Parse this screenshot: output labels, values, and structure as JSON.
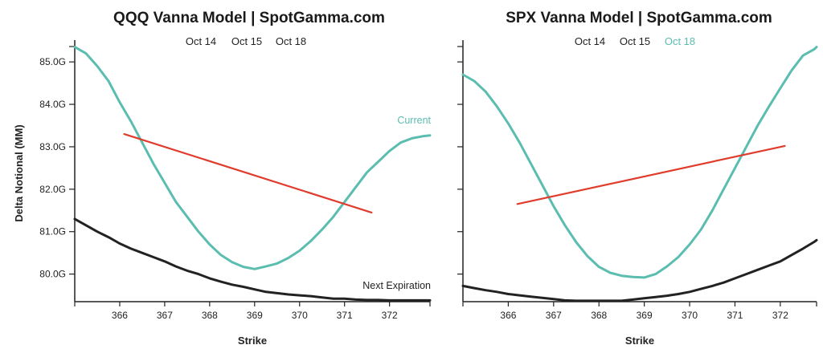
{
  "colors": {
    "current": "#5bbdb0",
    "next": "#222222",
    "trend": "#e03c2c",
    "axis": "#222222"
  },
  "chart_data": [
    {
      "type": "line",
      "title": "QQQ Vanna Model | SpotGamma.com",
      "xlabel": "Strike",
      "ylabel": "Delta Notional (MM)",
      "xlim": [
        365.0,
        372.9
      ],
      "ylim": [
        79.35,
        85.4
      ],
      "x_ticks": [
        366,
        367,
        368,
        369,
        370,
        371,
        372
      ],
      "y_ticks": [
        80.0,
        81.0,
        82.0,
        83.0,
        84.0,
        85.0
      ],
      "y_tick_labels": [
        "80.0G",
        "81.0G",
        "82.0G",
        "83.0G",
        "84.0G",
        "85.0G"
      ],
      "legend": [
        {
          "label": "Oct 14",
          "color": "#222222"
        },
        {
          "label": "Oct 15",
          "color": "#222222"
        },
        {
          "label": "Oct 18",
          "color": "#222222"
        }
      ],
      "legend_position": "top",
      "series": [
        {
          "name": "Current",
          "color": "#5bbdb0",
          "x": [
            365.0,
            365.25,
            365.5,
            365.75,
            366.0,
            366.25,
            366.5,
            366.75,
            367.0,
            367.25,
            367.5,
            367.75,
            368.0,
            368.25,
            368.5,
            368.75,
            369.0,
            369.25,
            369.5,
            369.75,
            370.0,
            370.25,
            370.5,
            370.75,
            371.0,
            371.25,
            371.5,
            371.75,
            372.0,
            372.25,
            372.5,
            372.75,
            372.9
          ],
          "y": [
            85.35,
            85.2,
            84.9,
            84.55,
            84.05,
            83.6,
            83.1,
            82.6,
            82.15,
            81.7,
            81.35,
            81.0,
            80.7,
            80.45,
            80.28,
            80.17,
            80.12,
            80.18,
            80.25,
            80.38,
            80.55,
            80.78,
            81.05,
            81.35,
            81.7,
            82.05,
            82.4,
            82.65,
            82.9,
            83.1,
            83.2,
            83.25,
            83.27
          ],
          "label": "Current"
        },
        {
          "name": "Next Expiration",
          "color": "#222222",
          "x": [
            365.0,
            365.25,
            365.5,
            365.75,
            366.0,
            366.25,
            366.5,
            366.75,
            367.0,
            367.25,
            367.5,
            367.75,
            368.0,
            368.25,
            368.5,
            368.75,
            369.0,
            369.25,
            369.5,
            369.75,
            370.0,
            370.25,
            370.5,
            370.75,
            371.0,
            371.25,
            371.5,
            371.75,
            372.0,
            372.25,
            372.5,
            372.75,
            372.9
          ],
          "y": [
            81.3,
            81.15,
            81.0,
            80.87,
            80.72,
            80.6,
            80.5,
            80.4,
            80.3,
            80.18,
            80.08,
            80.0,
            79.9,
            79.82,
            79.75,
            79.7,
            79.64,
            79.58,
            79.55,
            79.52,
            79.5,
            79.48,
            79.45,
            79.42,
            79.42,
            79.4,
            79.39,
            79.39,
            79.38,
            79.38,
            79.38,
            79.38,
            79.38
          ],
          "label": "Next Expiration"
        },
        {
          "name": "trend",
          "color": "#e03c2c",
          "x": [
            366.1,
            371.6
          ],
          "y": [
            83.3,
            81.45
          ]
        }
      ]
    },
    {
      "type": "line",
      "title": "SPX Vanna Model | SpotGamma.com",
      "xlabel": "Strike",
      "ylabel": "",
      "xlim": [
        365.0,
        372.8
      ],
      "ylim": [
        79.35,
        85.4
      ],
      "x_ticks": [
        366,
        367,
        368,
        369,
        370,
        371,
        372
      ],
      "y_ticks": [
        80.0,
        81.0,
        82.0,
        83.0,
        84.0,
        85.0
      ],
      "legend": [
        {
          "label": "Oct 14",
          "color": "#222222"
        },
        {
          "label": "Oct 15",
          "color": "#222222"
        },
        {
          "label": "Oct 18",
          "color": "#5bbdb0"
        }
      ],
      "legend_position": "top",
      "series": [
        {
          "color": "#5bbdb0",
          "x": [
            365.0,
            365.25,
            365.5,
            365.75,
            366.0,
            366.25,
            366.5,
            366.75,
            367.0,
            367.25,
            367.5,
            367.75,
            368.0,
            368.25,
            368.5,
            368.75,
            369.0,
            369.25,
            369.5,
            369.75,
            370.0,
            370.25,
            370.5,
            370.75,
            371.0,
            371.25,
            371.5,
            371.75,
            372.0,
            372.25,
            372.5,
            372.75,
            372.8
          ],
          "y": [
            84.7,
            84.55,
            84.3,
            83.95,
            83.55,
            83.1,
            82.6,
            82.1,
            81.6,
            81.15,
            80.75,
            80.42,
            80.17,
            80.03,
            79.96,
            79.93,
            79.92,
            80.0,
            80.18,
            80.4,
            80.7,
            81.05,
            81.5,
            82.0,
            82.5,
            83.0,
            83.5,
            83.95,
            84.38,
            84.8,
            85.15,
            85.3,
            85.35
          ]
        },
        {
          "color": "#222222",
          "x": [
            365.0,
            365.25,
            365.5,
            365.75,
            366.0,
            366.25,
            366.5,
            366.75,
            367.0,
            367.25,
            367.5,
            367.75,
            368.0,
            368.25,
            368.5,
            368.75,
            369.0,
            369.25,
            369.5,
            369.75,
            370.0,
            370.25,
            370.5,
            370.75,
            371.0,
            371.25,
            371.5,
            371.75,
            372.0,
            372.25,
            372.5,
            372.75,
            372.8
          ],
          "y": [
            79.72,
            79.67,
            79.62,
            79.58,
            79.53,
            79.5,
            79.47,
            79.44,
            79.41,
            79.38,
            79.37,
            79.37,
            79.37,
            79.37,
            79.37,
            79.4,
            79.43,
            79.46,
            79.49,
            79.53,
            79.58,
            79.65,
            79.72,
            79.8,
            79.9,
            80.0,
            80.1,
            80.2,
            80.3,
            80.45,
            80.6,
            80.76,
            80.8
          ]
        },
        {
          "color": "#e03c2c",
          "x": [
            366.2,
            372.1
          ],
          "y": [
            81.65,
            83.02
          ]
        }
      ]
    }
  ]
}
